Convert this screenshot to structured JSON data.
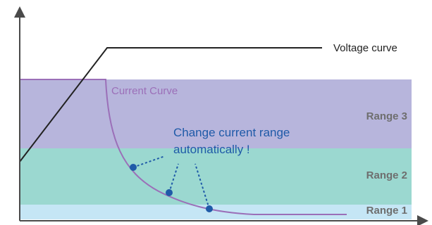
{
  "labels": {
    "voltage_curve": "Voltage curve",
    "current_curve": "Current Curve",
    "annotation_line1": "Change current range",
    "annotation_line2": "automatically !"
  },
  "ranges": [
    {
      "label": "Range 3",
      "color": "#b7b5dc"
    },
    {
      "label": "Range 2",
      "color": "#9bd8d0"
    },
    {
      "label": "Range 1",
      "color": "#c5e6f5"
    }
  ],
  "colors": {
    "axis": "#4a4a4a",
    "voltage_line": "#222222",
    "current_line": "#9b6fb8",
    "annotation": "#1f5aa8",
    "range_text": "#6e6e6e"
  }
}
